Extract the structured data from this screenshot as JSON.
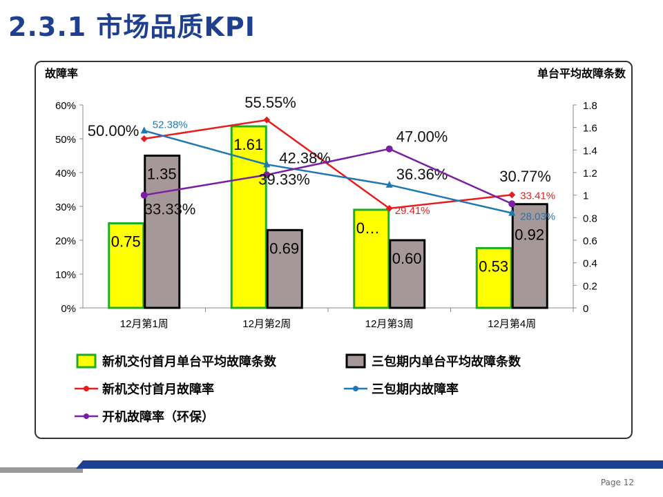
{
  "slide": {
    "title": "2.3.1  市场品质KPI",
    "page": "Page 12"
  },
  "chart_data": {
    "type": "bar+line",
    "categories": [
      "12月第1周",
      "12月第2周",
      "12月第3周",
      "12月第4周"
    ],
    "ylabel_left": "故障率",
    "ylabel_right": "单台平均故障条数",
    "ylim_left": [
      0,
      60
    ],
    "yticks_left": [
      "0%",
      "10%",
      "20%",
      "30%",
      "40%",
      "50%",
      "60%"
    ],
    "ylim_right": [
      0,
      1.8
    ],
    "yticks_right": [
      "0",
      "0.2",
      "0.4",
      "0.6",
      "0.8",
      "1",
      "1.2",
      "1.4",
      "1.6",
      "1.8"
    ],
    "legend_position": "bottom",
    "bars": [
      {
        "name": "新机交付首月单台平均故障条数",
        "values": [
          0.75,
          1.61,
          0.87,
          0.53
        ],
        "labels": [
          "0.75",
          "1.61",
          "0…",
          "0.53"
        ],
        "fill": "#ffff00",
        "stroke": "#22aa22"
      },
      {
        "name": "三包期内单台平均故障条数",
        "values": [
          1.35,
          0.69,
          0.6,
          0.92
        ],
        "labels": [
          "1.35",
          "0.69",
          "0.60",
          "0.92"
        ],
        "fill": "#a69898",
        "stroke": "#000000"
      }
    ],
    "lines": [
      {
        "name": "新机交付首月故障率",
        "values": [
          50.0,
          55.55,
          29.41,
          33.41
        ],
        "labels": [
          "50.00%",
          "55.55%",
          "29.41%",
          "33.41%"
        ],
        "color": "#e81c1c",
        "marker": "diamond"
      },
      {
        "name": "三包期内故障率",
        "values": [
          52.38,
          42.38,
          36.36,
          28.03
        ],
        "labels": [
          "52.38%",
          "42.38%",
          "36.36%",
          "28.03%"
        ],
        "color": "#1f77b4",
        "marker": "triangle"
      },
      {
        "name": "开机故障率（环保）",
        "values": [
          33.33,
          39.33,
          47.0,
          30.77
        ],
        "labels": [
          "33.33%",
          "39.33%",
          "47.00%",
          "30.77%"
        ],
        "color": "#7b1fa2",
        "marker": "circle"
      }
    ]
  }
}
